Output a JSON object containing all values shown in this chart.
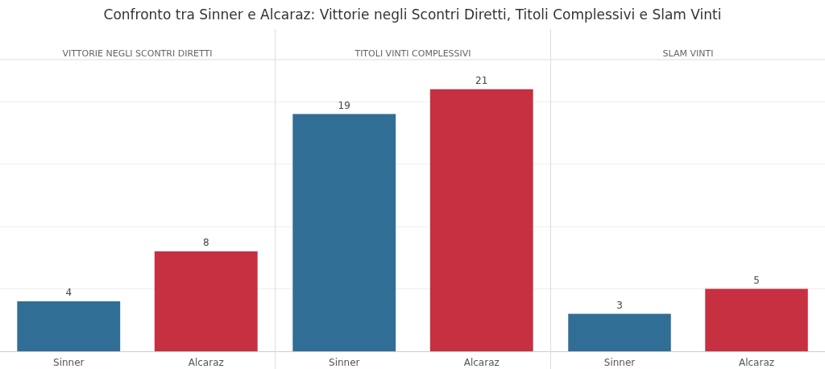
{
  "chart_data": [
    {
      "type": "bar",
      "title": "Confronto tra Sinner e Alcaraz: Vittorie negli Scontri Diretti, Titoli Complessivi e Slam Vinti",
      "subtitle": "VITTORIE NEGLI SCONTRI DIRETTI",
      "categories": [
        "Sinner",
        "Alcaraz"
      ],
      "values": [
        4,
        8
      ],
      "colors": [
        "#316e96",
        "#c63040"
      ],
      "data_labels": true,
      "ylim": [
        0,
        23.3
      ],
      "yticks": [
        {
          "value": 0,
          "label": null
        },
        {
          "value": 5,
          "label": null
        },
        {
          "value": 10,
          "label": null
        },
        {
          "value": 15,
          "label": null
        },
        {
          "value": 20,
          "label": null
        }
      ],
      "tick_labels": "x",
      "grid": "y"
    },
    {
      "type": "bar",
      "subtitle": "TITOLI VINTI COMPLESSIVI",
      "categories": [
        "Sinner",
        "Alcaraz"
      ],
      "values": [
        19,
        21
      ],
      "colors": [
        "#316e96",
        "#c63040"
      ],
      "data_labels": true,
      "ylim": [
        0,
        23.3
      ],
      "yticks": [
        {
          "value": 0,
          "label": null
        },
        {
          "value": 5,
          "label": null
        },
        {
          "value": 10,
          "label": null
        },
        {
          "value": 15,
          "label": null
        },
        {
          "value": 20,
          "label": null
        }
      ],
      "tick_labels": "x",
      "grid": "y"
    },
    {
      "type": "bar",
      "subtitle": "SLAM VINTI",
      "categories": [
        "Sinner",
        "Alcaraz"
      ],
      "values": [
        3,
        5
      ],
      "colors": [
        "#316e96",
        "#c63040"
      ],
      "data_labels": true,
      "ylim": [
        0,
        23.3
      ],
      "yticks": [
        {
          "value": 0,
          "label": null
        },
        {
          "value": 5,
          "label": null
        },
        {
          "value": 10,
          "label": null
        },
        {
          "value": 15,
          "label": null
        },
        {
          "value": 20,
          "label": null
        }
      ],
      "tick_labels": "x",
      "grid": "y"
    }
  ]
}
